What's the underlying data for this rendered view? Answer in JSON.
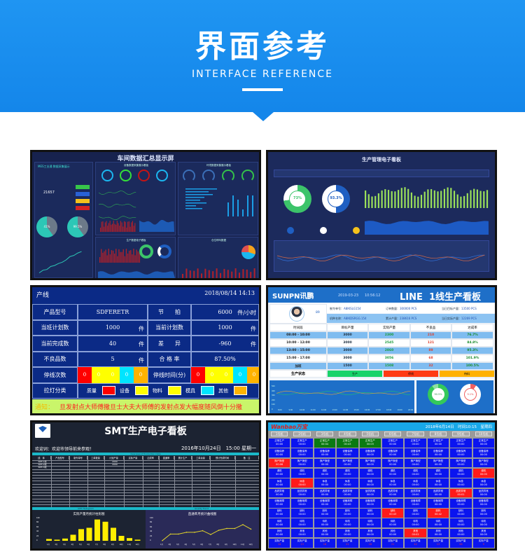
{
  "header": {
    "title": "界面参考",
    "subtitle": "INTERFACE REFERENCE",
    "bg_color": "#1a8cee"
  },
  "panel1": {
    "title": "车间数据汇总显示屏",
    "left_title": "MES工业通 数据采集展示",
    "mid_title": "设备数据采集展示看板",
    "right_title": "环境数据采集展示看板",
    "prod_title": "生产数据电子看板",
    "store_title": "仓位呼叫数据",
    "count": "21657",
    "pie1": "41%",
    "pie2": "99.5%"
  },
  "panel2": {
    "title": "生产管理电子看板",
    "donut1": "73%",
    "donut2": "93.3%",
    "donut1_color": "#3cc46a",
    "donut2_color": "#1f5fc2",
    "bar_color": "#9be05a"
  },
  "panel3": {
    "line_label": "产线",
    "datetime": "2018/08/14 14:13",
    "rows": [
      {
        "l1": "产品型号",
        "v1": "SDFERETR",
        "u1": "",
        "l2": "节　　拍",
        "v2": "6000",
        "u2": "件/小时"
      },
      {
        "l1": "当班计划数",
        "v1": "1000",
        "u1": "件",
        "l2": "当前计划数",
        "v2": "1000",
        "u2": "件"
      },
      {
        "l1": "当前完成数",
        "v1": "40",
        "u1": "件",
        "l2": "差　　异",
        "v2": "-960",
        "u2": "件"
      },
      {
        "l1": "不良品数",
        "v1": "5",
        "u1": "件",
        "l2": "合 格 率",
        "v2": "87.50%",
        "u2": ""
      }
    ],
    "stop_count_label": "停线次数",
    "stop_time_label": "停线时间(分)",
    "stop_counts": [
      "0",
      "0",
      "0",
      "0",
      "0"
    ],
    "stop_times": [
      "0",
      "0",
      "0",
      "0",
      "0"
    ],
    "andon_label": "拉灯分类",
    "categories": [
      {
        "name": "质量",
        "color": "#ff0000"
      },
      {
        "name": "设备",
        "color": "#ffff00"
      },
      {
        "name": "物料",
        "color": "#ffff00"
      },
      {
        "name": "模具",
        "color": "#00e5ff"
      },
      {
        "name": "其他",
        "color": "#ffb300"
      }
    ],
    "notice_label": "通知：",
    "notice_text": "旦发射点大师傅撒旦士大夫大师傅的发射点发大幅度随风倒十分撒"
  },
  "panel4": {
    "brand": "SUNPN讯鹏",
    "date": "2019-03-23",
    "time": "10:56:12",
    "title": "LINE  1线生产看板",
    "person_id": "89",
    "info": [
      {
        "label": "制令单号：",
        "value": "A8IKSLG154"
      },
      {
        "label": "订单数量：",
        "value": "300000 PCS"
      },
      {
        "label": "当日目标产量：",
        "value": "13500 PCS"
      },
      {
        "label": "机种名称：",
        "value": "A8IKDSRGG.154"
      },
      {
        "label": "累计产量：",
        "value": "238616 PCS"
      },
      {
        "label": "当日实际产量：",
        "value": "12269 PCS"
      }
    ],
    "columns": [
      "时间段",
      "目标产量",
      "实际产量",
      "不良品",
      "达成率"
    ],
    "rows": [
      [
        "08:00 - 10:00",
        "3000",
        "2300",
        "210",
        "76.7%"
      ],
      [
        "10:00 - 12:00",
        "3000",
        "2545",
        "121",
        "84.8%"
      ],
      [
        "13:00 - 15:00",
        "3000",
        "2860",
        "89",
        "95.3%"
      ],
      [
        "15:00 - 17:00",
        "3000",
        "3056",
        "68",
        "101.9%"
      ],
      [
        "加班",
        "1500",
        "1508",
        "32",
        "100.5%"
      ]
    ],
    "status_label": "生产状态",
    "statuses": [
      {
        "name": "生产",
        "color": "#19d36a"
      },
      {
        "name": "停线",
        "color": "#ff3b14"
      },
      {
        "name": "待料",
        "color": "#ffb100"
      }
    ],
    "chart_x": [
      "8:00",
      "9:00",
      "10:00",
      "11:00",
      "12:00",
      "13:00",
      "14:00",
      "15:00",
      "16:00",
      "17:00",
      "18:00",
      "19:00",
      "20:00"
    ],
    "chart_y": [
      "500",
      "400",
      "300",
      "200",
      "100",
      "0"
    ],
    "donut1": "90.5%",
    "donut2": "9.1%"
  },
  "panel5": {
    "title": "SMT生产电子看板",
    "welcome": "欢迎词：欢迎市领导前来参观！",
    "datetime": "2016年10月24日　15:00 星期一",
    "table_caption": "Overview of Production Data",
    "columns": [
      "线　体",
      "产品型号",
      "制令单号",
      "工单数量",
      "计划产量",
      "实际产量",
      "达成率",
      "直通率",
      "累计生产",
      "工单余量",
      "预计完成时间",
      "备　注"
    ],
    "rows": [
      [
        "SMT-1线",
        "",
        "",
        "",
        "2000"
      ],
      [
        "SMT-2线",
        "",
        "",
        "",
        "2000"
      ],
      [
        "SMT-3线"
      ]
    ],
    "bar_caption": "UPH Histogram",
    "line_caption": "Quality Trend",
    "bar_title": "实际产量月统计柱形图",
    "line_title": "直通率月统计曲线图",
    "months": [
      "1月",
      "2月",
      "3月",
      "4月",
      "5月",
      "6月",
      "7月",
      "8月",
      "9月",
      "10月",
      "11月",
      "12月"
    ],
    "y_ticks": [
      "100",
      "80",
      "60",
      "40",
      "20",
      "0"
    ],
    "bar_values": [
      8,
      5,
      10,
      27,
      52,
      58,
      95,
      85,
      58,
      22,
      12,
      5
    ],
    "line_values": [
      1,
      30,
      30,
      38,
      38,
      45,
      28,
      47,
      55,
      55,
      72,
      52
    ],
    "bar_color": "#ffee00",
    "line_color": "#e0d22a"
  },
  "panel6": {
    "brand": "Wanbao万宝",
    "datetime": "2018年6月14日　时间10:15　星期四",
    "machines": [
      "1号机",
      "2号机",
      "3号机",
      "4号机",
      "5号机",
      "6号机",
      "7号机",
      "8号机",
      "9号机",
      "10号机"
    ],
    "states": [
      "正常生产",
      "设备保养",
      "换产换型",
      "调机",
      "休息",
      "品质异常",
      "设备故障",
      "缺料",
      "待机",
      "其他"
    ],
    "output_label": "实际产量",
    "outputs": [
      "14",
      "13",
      "18",
      "21",
      "18",
      "21",
      "42",
      "13",
      "56",
      "9"
    ],
    "default_time": "00:00",
    "green_cells": [
      [
        0,
        2,
        "00:04"
      ],
      [
        0,
        3,
        "00:43"
      ],
      [
        0,
        4,
        "00:03"
      ]
    ],
    "red_cells": [
      [
        2,
        0,
        "00:06"
      ],
      [
        3,
        9,
        "00:00"
      ],
      [
        4,
        1,
        "00:00"
      ],
      [
        5,
        8,
        "00:01"
      ],
      [
        7,
        5,
        "00:43"
      ],
      [
        7,
        7,
        "00:42"
      ],
      [
        9,
        6,
        "00:02"
      ]
    ]
  }
}
